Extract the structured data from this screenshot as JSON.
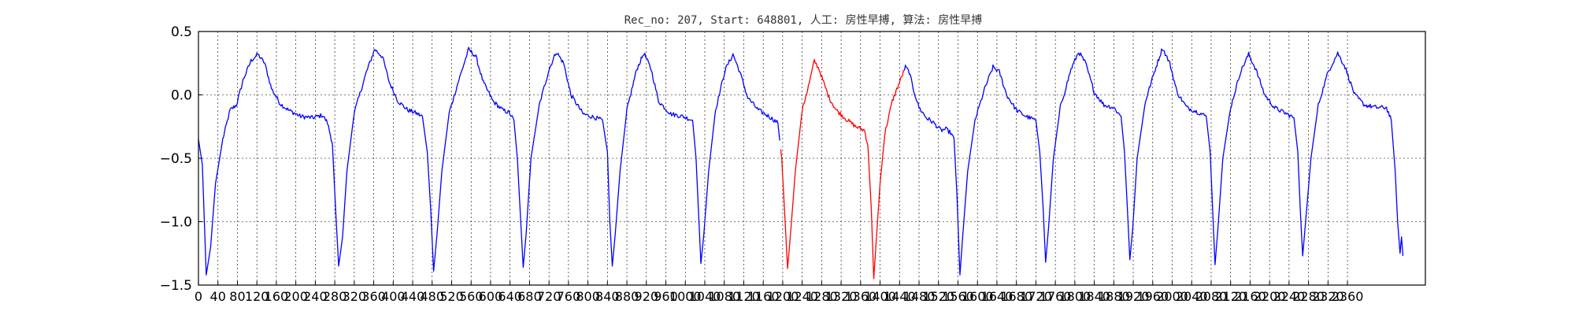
{
  "chart_data": {
    "type": "line",
    "title": "Rec_no: 207, Start: 648801, 人工: 房性早搏, 算法: 房性早搏",
    "xlabel": "",
    "ylabel": "",
    "xlim": [
      0,
      2520
    ],
    "ylim": [
      -1.5,
      0.5
    ],
    "grid": true,
    "xticks": [
      0,
      40,
      80,
      120,
      160,
      200,
      240,
      280,
      320,
      360,
      400,
      440,
      480,
      520,
      560,
      600,
      640,
      680,
      720,
      760,
      800,
      840,
      880,
      920,
      960,
      1000,
      1040,
      1080,
      1120,
      1160,
      1200,
      1240,
      1280,
      1320,
      1360,
      1400,
      1440,
      1480,
      1520,
      1560,
      1600,
      1640,
      1680,
      1720,
      1760,
      1800,
      1840,
      1880,
      1920,
      1960,
      2000,
      2040,
      2080,
      2120,
      2160,
      2200,
      2240,
      2280,
      2320,
      2360
    ],
    "yticks": [
      "0.5",
      "0.0",
      "−0.5",
      "−1.0",
      "−1.5"
    ],
    "ytick_values": [
      0.5,
      0.0,
      -0.5,
      -1.0,
      -1.5
    ],
    "colors": {
      "normal": "#0000ff",
      "highlight": "#ff0000"
    },
    "highlight_x_range": [
      1195,
      1450
    ],
    "keypoints": [
      [
        0,
        -0.35
      ],
      [
        8,
        -0.55
      ],
      [
        16,
        -1.42
      ],
      [
        25,
        -1.2
      ],
      [
        35,
        -0.7
      ],
      [
        50,
        -0.35
      ],
      [
        65,
        -0.12
      ],
      [
        78,
        -0.08
      ],
      [
        92,
        0.12
      ],
      [
        108,
        0.27
      ],
      [
        122,
        0.32
      ],
      [
        136,
        0.25
      ],
      [
        150,
        0.05
      ],
      [
        168,
        -0.07
      ],
      [
        185,
        -0.12
      ],
      [
        210,
        -0.17
      ],
      [
        235,
        -0.18
      ],
      [
        255,
        -0.16
      ],
      [
        265,
        -0.22
      ],
      [
        275,
        -0.38
      ],
      [
        283,
        -1.0
      ],
      [
        288,
        -1.35
      ],
      [
        296,
        -1.12
      ],
      [
        305,
        -0.6
      ],
      [
        320,
        -0.14
      ],
      [
        345,
        0.18
      ],
      [
        362,
        0.36
      ],
      [
        378,
        0.3
      ],
      [
        392,
        0.1
      ],
      [
        410,
        -0.05
      ],
      [
        430,
        -0.12
      ],
      [
        445,
        -0.14
      ],
      [
        460,
        -0.17
      ],
      [
        470,
        -0.45
      ],
      [
        477,
        -0.9
      ],
      [
        483,
        -1.39
      ],
      [
        490,
        -1.1
      ],
      [
        500,
        -0.6
      ],
      [
        515,
        -0.14
      ],
      [
        535,
        0.12
      ],
      [
        555,
        0.36
      ],
      [
        570,
        0.3
      ],
      [
        585,
        0.1
      ],
      [
        605,
        -0.05
      ],
      [
        625,
        -0.12
      ],
      [
        638,
        -0.14
      ],
      [
        648,
        -0.2
      ],
      [
        655,
        -0.5
      ],
      [
        662,
        -1.0
      ],
      [
        667,
        -1.36
      ],
      [
        673,
        -1.1
      ],
      [
        683,
        -0.5
      ],
      [
        700,
        -0.08
      ],
      [
        720,
        0.2
      ],
      [
        735,
        0.34
      ],
      [
        750,
        0.25
      ],
      [
        765,
        0.0
      ],
      [
        790,
        -0.15
      ],
      [
        815,
        -0.18
      ],
      [
        830,
        -0.2
      ],
      [
        840,
        -0.45
      ],
      [
        845,
        -1.0
      ],
      [
        850,
        -1.35
      ],
      [
        856,
        -1.1
      ],
      [
        866,
        -0.6
      ],
      [
        880,
        -0.12
      ],
      [
        900,
        0.2
      ],
      [
        915,
        0.33
      ],
      [
        930,
        0.2
      ],
      [
        945,
        -0.05
      ],
      [
        970,
        -0.15
      ],
      [
        995,
        -0.17
      ],
      [
        1015,
        -0.2
      ],
      [
        1022,
        -0.5
      ],
      [
        1028,
        -1.0
      ],
      [
        1032,
        -1.33
      ],
      [
        1038,
        -1.1
      ],
      [
        1048,
        -0.6
      ],
      [
        1062,
        -0.12
      ],
      [
        1082,
        0.2
      ],
      [
        1098,
        0.32
      ],
      [
        1112,
        0.18
      ],
      [
        1128,
        -0.02
      ],
      [
        1150,
        -0.12
      ],
      [
        1172,
        -0.17
      ],
      [
        1190,
        -0.22
      ],
      [
        1198,
        -0.5
      ],
      [
        1205,
        -1.0
      ],
      [
        1210,
        -1.37
      ],
      [
        1216,
        -1.1
      ],
      [
        1226,
        -0.6
      ],
      [
        1240,
        -0.12
      ],
      [
        1255,
        0.1
      ],
      [
        1265,
        0.27
      ],
      [
        1275,
        0.2
      ],
      [
        1282,
        0.12
      ],
      [
        1295,
        -0.02
      ],
      [
        1310,
        -0.12
      ],
      [
        1330,
        -0.19
      ],
      [
        1350,
        -0.25
      ],
      [
        1368,
        -0.28
      ],
      [
        1375,
        -0.4
      ],
      [
        1382,
        -0.9
      ],
      [
        1387,
        -1.45
      ],
      [
        1393,
        -1.1
      ],
      [
        1400,
        -0.7
      ],
      [
        1410,
        -0.3
      ],
      [
        1425,
        -0.05
      ],
      [
        1440,
        0.1
      ],
      [
        1452,
        0.22
      ],
      [
        1460,
        0.18
      ],
      [
        1468,
        0.05
      ],
      [
        1480,
        -0.1
      ],
      [
        1495,
        -0.18
      ],
      [
        1510,
        -0.22
      ],
      [
        1525,
        -0.28
      ],
      [
        1535,
        -0.27
      ],
      [
        1545,
        -0.3
      ],
      [
        1552,
        -0.35
      ],
      [
        1558,
        -0.8
      ],
      [
        1564,
        -1.42
      ],
      [
        1570,
        -1.1
      ],
      [
        1580,
        -0.6
      ],
      [
        1595,
        -0.2
      ],
      [
        1615,
        0.05
      ],
      [
        1632,
        0.22
      ],
      [
        1645,
        0.18
      ],
      [
        1660,
        0.0
      ],
      [
        1680,
        -0.12
      ],
      [
        1700,
        -0.17
      ],
      [
        1720,
        -0.2
      ],
      [
        1728,
        -0.45
      ],
      [
        1735,
        -0.9
      ],
      [
        1740,
        -1.32
      ],
      [
        1746,
        -1.05
      ],
      [
        1756,
        -0.5
      ],
      [
        1770,
        -0.1
      ],
      [
        1792,
        0.2
      ],
      [
        1808,
        0.34
      ],
      [
        1822,
        0.25
      ],
      [
        1840,
        0.02
      ],
      [
        1860,
        -0.08
      ],
      [
        1880,
        -0.1
      ],
      [
        1895,
        -0.17
      ],
      [
        1902,
        -0.45
      ],
      [
        1908,
        -0.9
      ],
      [
        1913,
        -1.3
      ],
      [
        1919,
        -1.05
      ],
      [
        1928,
        -0.5
      ],
      [
        1945,
        -0.05
      ],
      [
        1965,
        0.2
      ],
      [
        1980,
        0.37
      ],
      [
        1995,
        0.25
      ],
      [
        2010,
        0.02
      ],
      [
        2030,
        -0.1
      ],
      [
        2055,
        -0.14
      ],
      [
        2070,
        -0.17
      ],
      [
        2078,
        -0.45
      ],
      [
        2083,
        -0.9
      ],
      [
        2088,
        -1.34
      ],
      [
        2094,
        -1.05
      ],
      [
        2104,
        -0.5
      ],
      [
        2120,
        -0.1
      ],
      [
        2140,
        0.18
      ],
      [
        2157,
        0.32
      ],
      [
        2172,
        0.2
      ],
      [
        2190,
        0.0
      ],
      [
        2210,
        -0.1
      ],
      [
        2235,
        -0.15
      ],
      [
        2250,
        -0.18
      ],
      [
        2258,
        -0.45
      ],
      [
        2263,
        -0.9
      ],
      [
        2268,
        -1.27
      ],
      [
        2274,
        -1.0
      ],
      [
        2285,
        -0.5
      ],
      [
        2300,
        -0.08
      ],
      [
        2320,
        0.18
      ],
      [
        2340,
        0.33
      ],
      [
        2355,
        0.22
      ],
      [
        2375,
        0.0
      ],
      [
        2395,
        -0.08
      ],
      [
        2420,
        -0.1
      ],
      [
        2440,
        -0.1
      ],
      [
        2450,
        -0.2
      ],
      [
        2458,
        -0.6
      ],
      [
        2463,
        -1.0
      ],
      [
        2468,
        -1.25
      ],
      [
        2471,
        -1.12
      ],
      [
        2474,
        -1.27
      ]
    ]
  }
}
